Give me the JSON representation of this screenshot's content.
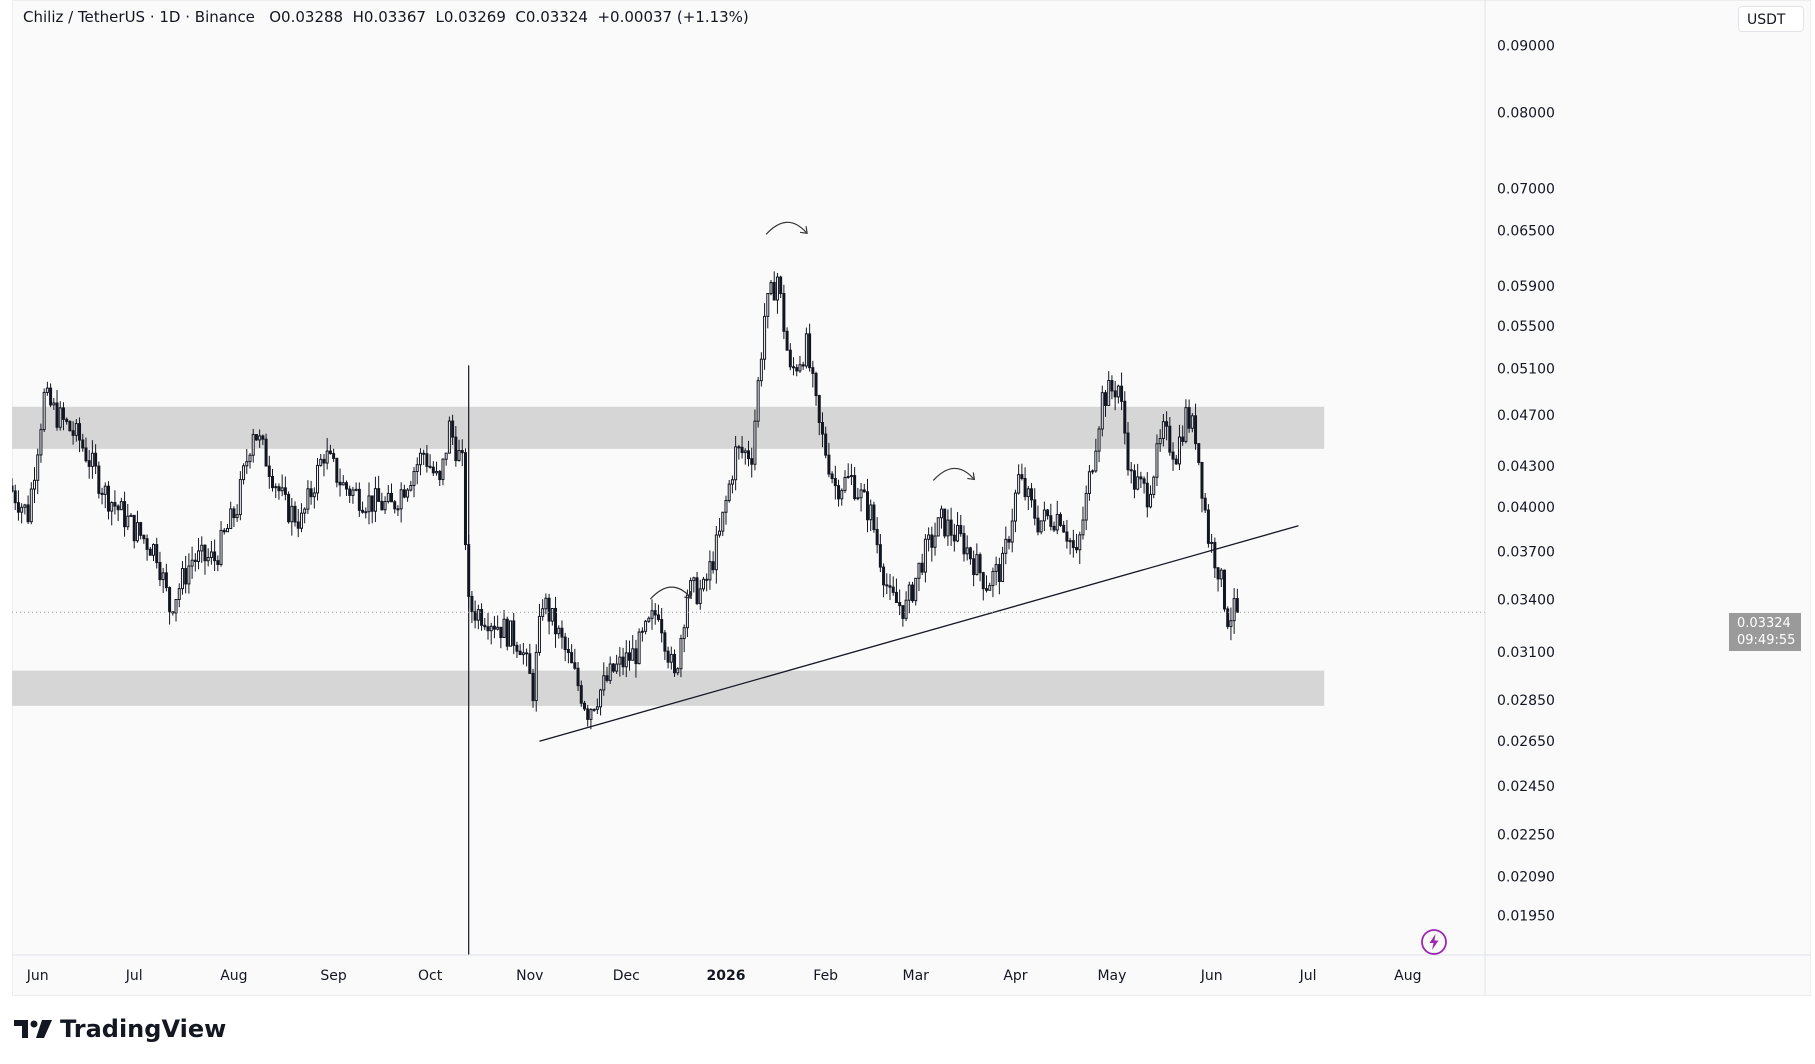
{
  "legend": {
    "symbol": "Chiliz / TetherUS · 1D · Binance",
    "open": "O0.03288",
    "high": "H0.03367",
    "low": "L0.03269",
    "close": "C0.03324",
    "change": "+0.00037 (+1.13%)"
  },
  "currency_button": "USDT",
  "last_price": {
    "value": "0.03324",
    "countdown": "09:49:55"
  },
  "brand": "TradingView",
  "colors": {
    "candle": "#131722",
    "zone": "#d4d4d4",
    "background": "#fafafa",
    "replay": "#9c27b0"
  },
  "chart_data": {
    "type": "candlestick",
    "symbol": "Chiliz / TetherUS",
    "interval": "1D",
    "exchange": "Binance",
    "y_scale": "log",
    "ylim": [
      0.0182,
      0.0975
    ],
    "y_ticks": [
      "0.09000",
      "0.08000",
      "0.07000",
      "0.06500",
      "0.05900",
      "0.05500",
      "0.05100",
      "0.04700",
      "0.04300",
      "0.04000",
      "0.03700",
      "0.03400",
      "0.03100",
      "0.02850",
      "0.02650",
      "0.02450",
      "0.02250",
      "0.02090",
      "0.01950"
    ],
    "x_ticks": [
      "Jun",
      "Jul",
      "Aug",
      "Sep",
      "Oct",
      "Nov",
      "Dec",
      "2026",
      "Feb",
      "Mar",
      "Apr",
      "May",
      "Jun",
      "Jul",
      "Aug"
    ],
    "x_range": [
      "2025-05-24",
      "2026-08-25"
    ],
    "price_waypoints": [
      {
        "date": "2025-05-24",
        "price": 0.0415
      },
      {
        "date": "2025-05-30",
        "price": 0.0395
      },
      {
        "date": "2025-06-04",
        "price": 0.0485
      },
      {
        "date": "2025-06-08",
        "price": 0.047
      },
      {
        "date": "2025-06-15",
        "price": 0.045
      },
      {
        "date": "2025-06-23",
        "price": 0.041
      },
      {
        "date": "2025-07-02",
        "price": 0.0385
      },
      {
        "date": "2025-07-09",
        "price": 0.037
      },
      {
        "date": "2025-07-13",
        "price": 0.0335
      },
      {
        "date": "2025-07-20",
        "price": 0.0365
      },
      {
        "date": "2025-07-27",
        "price": 0.0365
      },
      {
        "date": "2025-08-03",
        "price": 0.04
      },
      {
        "date": "2025-08-08",
        "price": 0.046
      },
      {
        "date": "2025-08-13",
        "price": 0.043
      },
      {
        "date": "2025-08-18",
        "price": 0.04
      },
      {
        "date": "2025-08-23",
        "price": 0.039
      },
      {
        "date": "2025-08-30",
        "price": 0.044
      },
      {
        "date": "2025-09-05",
        "price": 0.0415
      },
      {
        "date": "2025-09-12",
        "price": 0.0405
      },
      {
        "date": "2025-09-20",
        "price": 0.04
      },
      {
        "date": "2025-09-30",
        "price": 0.044
      },
      {
        "date": "2025-10-05",
        "price": 0.0415
      },
      {
        "date": "2025-10-08",
        "price": 0.046
      },
      {
        "date": "2025-10-12",
        "price": 0.043
      },
      {
        "date": "2025-10-14",
        "price": 0.0335
      },
      {
        "date": "2025-10-20",
        "price": 0.033
      },
      {
        "date": "2025-10-30",
        "price": 0.0315
      },
      {
        "date": "2025-11-03",
        "price": 0.029
      },
      {
        "date": "2025-11-06",
        "price": 0.034
      },
      {
        "date": "2025-11-12",
        "price": 0.0315
      },
      {
        "date": "2025-11-20",
        "price": 0.028
      },
      {
        "date": "2025-11-28",
        "price": 0.03
      },
      {
        "date": "2025-12-05",
        "price": 0.031
      },
      {
        "date": "2025-12-12",
        "price": 0.0335
      },
      {
        "date": "2025-12-17",
        "price": 0.0295
      },
      {
        "date": "2025-12-21",
        "price": 0.0345
      },
      {
        "date": "2025-12-26",
        "price": 0.0345
      },
      {
        "date": "2025-12-31",
        "price": 0.038
      },
      {
        "date": "2026-01-05",
        "price": 0.044
      },
      {
        "date": "2026-01-10",
        "price": 0.044
      },
      {
        "date": "2026-01-14",
        "price": 0.056
      },
      {
        "date": "2026-01-18",
        "price": 0.06
      },
      {
        "date": "2026-01-22",
        "price": 0.0505
      },
      {
        "date": "2026-01-27",
        "price": 0.053
      },
      {
        "date": "2026-01-31",
        "price": 0.046
      },
      {
        "date": "2026-02-05",
        "price": 0.0415
      },
      {
        "date": "2026-02-10",
        "price": 0.042
      },
      {
        "date": "2026-02-16",
        "price": 0.0395
      },
      {
        "date": "2026-02-22",
        "price": 0.034
      },
      {
        "date": "2026-02-27",
        "price": 0.0335
      },
      {
        "date": "2026-03-04",
        "price": 0.0365
      },
      {
        "date": "2026-03-10",
        "price": 0.039
      },
      {
        "date": "2026-03-17",
        "price": 0.0375
      },
      {
        "date": "2026-03-24",
        "price": 0.035
      },
      {
        "date": "2026-03-29",
        "price": 0.036
      },
      {
        "date": "2026-04-03",
        "price": 0.042
      },
      {
        "date": "2026-04-09",
        "price": 0.039
      },
      {
        "date": "2026-04-16",
        "price": 0.0395
      },
      {
        "date": "2026-04-21",
        "price": 0.0365
      },
      {
        "date": "2026-04-25",
        "price": 0.042
      },
      {
        "date": "2026-04-29",
        "price": 0.0485
      },
      {
        "date": "2026-05-04",
        "price": 0.0495
      },
      {
        "date": "2026-05-08",
        "price": 0.042
      },
      {
        "date": "2026-05-13",
        "price": 0.041
      },
      {
        "date": "2026-05-18",
        "price": 0.0455
      },
      {
        "date": "2026-05-22",
        "price": 0.044
      },
      {
        "date": "2026-05-25",
        "price": 0.047
      },
      {
        "date": "2026-05-28",
        "price": 0.0455
      },
      {
        "date": "2026-06-01",
        "price": 0.038
      },
      {
        "date": "2026-06-04",
        "price": 0.036
      },
      {
        "date": "2026-06-07",
        "price": 0.033
      },
      {
        "date": "2026-06-09",
        "price": 0.03324
      }
    ],
    "last_close": 0.03324,
    "zones": [
      {
        "role": "resistance",
        "from_date": "2025-05-24",
        "to_date": "2026-07-06",
        "low": 0.0443,
        "high": 0.0477
      },
      {
        "role": "support",
        "from_date": "2025-05-24",
        "to_date": "2026-07-06",
        "low": 0.0282,
        "high": 0.03
      }
    ],
    "trendline": {
      "start": {
        "date": "2025-11-04",
        "price": 0.0265
      },
      "end": {
        "date": "2026-06-28",
        "price": 0.0387
      }
    },
    "vertical_line_date": "2025-10-13",
    "arrow_annotations": [
      {
        "near_date": "2025-12-15",
        "near_price": 0.0345
      },
      {
        "near_date": "2026-01-20",
        "near_price": 0.0655
      },
      {
        "near_date": "2026-03-13",
        "near_price": 0.0425
      }
    ]
  }
}
